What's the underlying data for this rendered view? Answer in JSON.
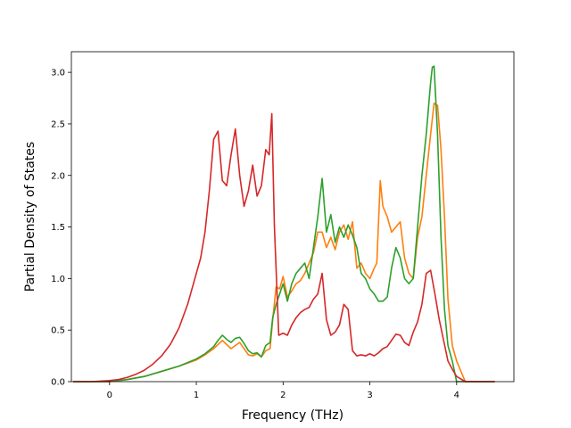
{
  "chart_data": {
    "type": "line",
    "title": "",
    "xlabel": "Frequency (THz)",
    "ylabel": "Partial Density of States",
    "xlim": [
      -0.44,
      4.66
    ],
    "ylim": [
      0.0,
      3.2
    ],
    "xticks": [
      0,
      1,
      2,
      3,
      4
    ],
    "xtick_labels": [
      "0",
      "1",
      "2",
      "3",
      "4"
    ],
    "yticks": [
      0.0,
      0.5,
      1.0,
      1.5,
      2.0,
      2.5,
      3.0
    ],
    "ytick_labels": [
      "0.0",
      "0.5",
      "1.0",
      "1.5",
      "2.0",
      "2.5",
      "3.0"
    ],
    "grid": false,
    "legend": "none",
    "series": [
      {
        "color": "#ff7f0e",
        "x": [
          -0.42,
          -0.2,
          0.0,
          0.2,
          0.4,
          0.6,
          0.8,
          1.0,
          1.1,
          1.2,
          1.25,
          1.3,
          1.35,
          1.4,
          1.45,
          1.5,
          1.55,
          1.6,
          1.65,
          1.7,
          1.75,
          1.8,
          1.85,
          1.88,
          1.92,
          1.96,
          2.0,
          2.05,
          2.1,
          2.15,
          2.2,
          2.25,
          2.3,
          2.35,
          2.4,
          2.45,
          2.5,
          2.55,
          2.6,
          2.65,
          2.7,
          2.75,
          2.8,
          2.85,
          2.9,
          2.95,
          3.0,
          3.05,
          3.08,
          3.12,
          3.15,
          3.2,
          3.25,
          3.3,
          3.35,
          3.4,
          3.45,
          3.5,
          3.55,
          3.6,
          3.65,
          3.7,
          3.74,
          3.78,
          3.82,
          3.86,
          3.9,
          3.95,
          4.0,
          4.1,
          4.2,
          4.44
        ],
        "y": [
          0.0,
          0.0,
          0.0,
          0.02,
          0.05,
          0.1,
          0.15,
          0.21,
          0.26,
          0.32,
          0.36,
          0.4,
          0.36,
          0.32,
          0.35,
          0.38,
          0.32,
          0.26,
          0.25,
          0.27,
          0.24,
          0.3,
          0.32,
          0.6,
          0.92,
          0.9,
          1.02,
          0.82,
          0.88,
          0.95,
          0.98,
          1.05,
          1.15,
          1.25,
          1.45,
          1.45,
          1.3,
          1.4,
          1.28,
          1.45,
          1.52,
          1.38,
          1.55,
          1.1,
          1.15,
          1.05,
          1.0,
          1.1,
          1.15,
          1.95,
          1.7,
          1.6,
          1.45,
          1.5,
          1.55,
          1.2,
          1.05,
          1.0,
          1.4,
          1.6,
          2.0,
          2.4,
          2.7,
          2.68,
          2.25,
          1.6,
          0.8,
          0.35,
          0.2,
          0.0,
          0.0,
          0.0
        ]
      },
      {
        "color": "#2ca02c",
        "x": [
          -0.42,
          -0.2,
          0.0,
          0.2,
          0.4,
          0.6,
          0.8,
          1.0,
          1.1,
          1.2,
          1.25,
          1.3,
          1.35,
          1.4,
          1.45,
          1.5,
          1.55,
          1.6,
          1.65,
          1.7,
          1.75,
          1.8,
          1.85,
          1.88,
          1.92,
          1.96,
          2.0,
          2.05,
          2.1,
          2.15,
          2.2,
          2.25,
          2.3,
          2.35,
          2.4,
          2.45,
          2.5,
          2.55,
          2.6,
          2.65,
          2.7,
          2.75,
          2.8,
          2.85,
          2.9,
          2.95,
          3.0,
          3.05,
          3.1,
          3.15,
          3.2,
          3.25,
          3.3,
          3.35,
          3.4,
          3.45,
          3.5,
          3.55,
          3.6,
          3.65,
          3.7,
          3.72,
          3.74,
          3.78,
          3.82,
          3.86,
          3.9,
          3.95,
          4.0,
          4.1,
          4.2,
          4.44
        ],
        "y": [
          0.0,
          0.0,
          0.0,
          0.02,
          0.05,
          0.1,
          0.15,
          0.22,
          0.27,
          0.34,
          0.4,
          0.45,
          0.41,
          0.38,
          0.42,
          0.43,
          0.37,
          0.3,
          0.27,
          0.28,
          0.24,
          0.35,
          0.38,
          0.62,
          0.75,
          0.85,
          0.95,
          0.78,
          0.95,
          1.05,
          1.1,
          1.15,
          1.0,
          1.3,
          1.6,
          1.97,
          1.45,
          1.62,
          1.35,
          1.5,
          1.4,
          1.52,
          1.42,
          1.3,
          1.05,
          1.0,
          0.9,
          0.85,
          0.78,
          0.78,
          0.82,
          1.1,
          1.3,
          1.2,
          1.0,
          0.95,
          1.0,
          1.5,
          2.0,
          2.4,
          2.9,
          3.05,
          3.06,
          2.4,
          1.4,
          0.7,
          0.35,
          0.2,
          0.0,
          0.0,
          0.0,
          0.0
        ]
      },
      {
        "color": "#d62728",
        "x": [
          -0.42,
          -0.2,
          0.0,
          0.1,
          0.2,
          0.3,
          0.4,
          0.5,
          0.6,
          0.7,
          0.8,
          0.9,
          1.0,
          1.05,
          1.1,
          1.15,
          1.2,
          1.25,
          1.3,
          1.35,
          1.4,
          1.45,
          1.5,
          1.55,
          1.6,
          1.65,
          1.7,
          1.75,
          1.8,
          1.84,
          1.87,
          1.9,
          1.95,
          2.0,
          2.05,
          2.1,
          2.15,
          2.2,
          2.25,
          2.3,
          2.35,
          2.4,
          2.45,
          2.5,
          2.55,
          2.6,
          2.65,
          2.7,
          2.75,
          2.8,
          2.85,
          2.9,
          2.95,
          3.0,
          3.05,
          3.1,
          3.15,
          3.2,
          3.25,
          3.3,
          3.35,
          3.4,
          3.45,
          3.5,
          3.55,
          3.6,
          3.65,
          3.7,
          3.75,
          3.8,
          3.85,
          3.9,
          3.95,
          4.0,
          4.1,
          4.2,
          4.44
        ],
        "y": [
          0.0,
          0.0,
          0.01,
          0.02,
          0.04,
          0.07,
          0.11,
          0.17,
          0.25,
          0.36,
          0.52,
          0.75,
          1.05,
          1.2,
          1.45,
          1.85,
          2.35,
          2.43,
          1.95,
          1.9,
          2.2,
          2.45,
          2.0,
          1.7,
          1.85,
          2.1,
          1.8,
          1.9,
          2.25,
          2.2,
          2.6,
          1.5,
          0.45,
          0.47,
          0.45,
          0.55,
          0.62,
          0.67,
          0.7,
          0.72,
          0.8,
          0.85,
          1.05,
          0.6,
          0.45,
          0.48,
          0.55,
          0.75,
          0.7,
          0.3,
          0.25,
          0.26,
          0.25,
          0.27,
          0.25,
          0.28,
          0.32,
          0.34,
          0.4,
          0.46,
          0.45,
          0.38,
          0.35,
          0.48,
          0.58,
          0.75,
          1.05,
          1.08,
          0.85,
          0.6,
          0.4,
          0.2,
          0.12,
          0.05,
          0.0,
          0.0,
          0.0
        ]
      }
    ]
  }
}
